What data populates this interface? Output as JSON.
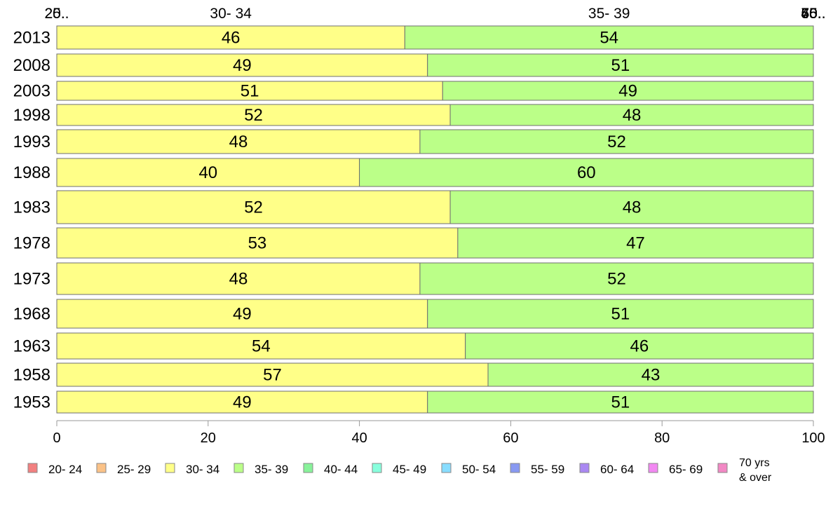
{
  "chart_data": {
    "type": "bar",
    "orientation": "horizontal",
    "stacked": "percent",
    "categories": [
      "2013",
      "2008",
      "2003",
      "1998",
      "1993",
      "1988",
      "1983",
      "1978",
      "1973",
      "1968",
      "1963",
      "1958",
      "1953"
    ],
    "series": [
      {
        "name": "20- 24",
        "color": "#f28080",
        "values": [
          0,
          0,
          0,
          0,
          0,
          0,
          0,
          0,
          0,
          0,
          0,
          0,
          0
        ]
      },
      {
        "name": "25- 29",
        "color": "#fbc287",
        "values": [
          0,
          0,
          0,
          0,
          0,
          0,
          0,
          0,
          0,
          0,
          0,
          0,
          0
        ]
      },
      {
        "name": "30- 34",
        "color": "#ffff88",
        "values": [
          46,
          49,
          51,
          52,
          48,
          40,
          52,
          53,
          48,
          49,
          54,
          57,
          49
        ]
      },
      {
        "name": "35- 39",
        "color": "#bbff88",
        "values": [
          54,
          51,
          49,
          48,
          52,
          60,
          48,
          47,
          52,
          51,
          46,
          43,
          51
        ]
      },
      {
        "name": "40- 44",
        "color": "#88f29a",
        "values": [
          0,
          0,
          0,
          0,
          0,
          0,
          0,
          0,
          0,
          0,
          0,
          0,
          0
        ]
      },
      {
        "name": "45- 49",
        "color": "#88ffdd",
        "values": [
          0,
          0,
          0,
          0,
          0,
          0,
          0,
          0,
          0,
          0,
          0,
          0,
          0
        ]
      },
      {
        "name": "50- 54",
        "color": "#88ddff",
        "values": [
          0,
          0,
          0,
          0,
          0,
          0,
          0,
          0,
          0,
          0,
          0,
          0,
          0
        ]
      },
      {
        "name": "55- 59",
        "color": "#8899f2",
        "values": [
          0,
          0,
          0,
          0,
          0,
          0,
          0,
          0,
          0,
          0,
          0,
          0,
          0
        ]
      },
      {
        "name": "60- 64",
        "color": "#aa88f2",
        "values": [
          0,
          0,
          0,
          0,
          0,
          0,
          0,
          0,
          0,
          0,
          0,
          0,
          0
        ]
      },
      {
        "name": "65- 69",
        "color": "#f288f2",
        "values": [
          0,
          0,
          0,
          0,
          0,
          0,
          0,
          0,
          0,
          0,
          0,
          0,
          0
        ]
      },
      {
        "name": "70 yrs & over",
        "color": "#f288c4",
        "values": [
          0,
          0,
          0,
          0,
          0,
          0,
          0,
          0,
          0,
          0,
          0,
          0,
          0
        ]
      }
    ],
    "top_labels": [
      "20..",
      "25..",
      "30- 34",
      "35- 39",
      "40..",
      "45..",
      "50..",
      "55..",
      "60..",
      "65..",
      "70.."
    ],
    "xlim": [
      0,
      100
    ],
    "xticks": [
      0,
      20,
      40,
      60,
      80,
      100
    ],
    "title": "",
    "xlabel": "",
    "ylabel": "",
    "grid": false,
    "legend": "bottom"
  }
}
